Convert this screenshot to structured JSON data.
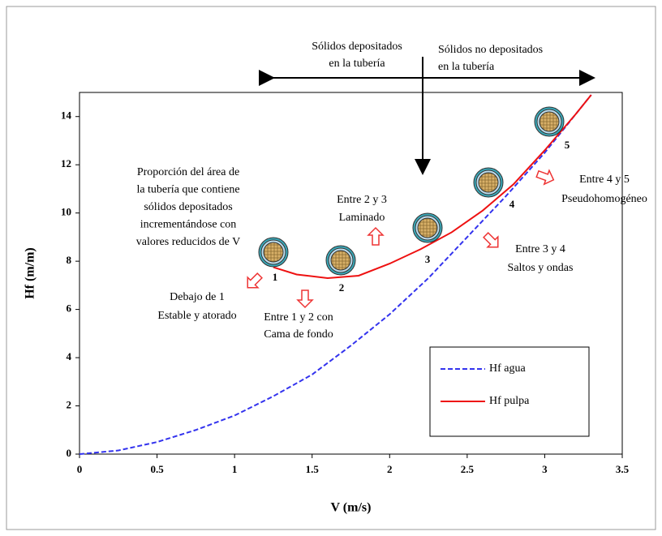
{
  "chart_data": {
    "type": "line",
    "xlabel": "V (m/s)",
    "ylabel": "Hf (m/m)",
    "xlim": [
      0,
      3.5
    ],
    "ylim": [
      0,
      15
    ],
    "xticks": [
      0,
      0.5,
      1,
      1.5,
      2,
      2.5,
      3,
      3.5
    ],
    "yticks": [
      0,
      2,
      4,
      6,
      8,
      10,
      12,
      14
    ],
    "series": [
      {
        "name": "Hf  agua",
        "color": "#3333ee",
        "dashed": true,
        "x": [
          0,
          0.25,
          0.5,
          0.75,
          1,
          1.25,
          1.5,
          1.75,
          2,
          2.25,
          2.5,
          2.75,
          3,
          3.3
        ],
        "values": [
          0,
          0.15,
          0.5,
          1.0,
          1.6,
          2.4,
          3.3,
          4.5,
          5.8,
          7.3,
          9.0,
          10.7,
          12.5,
          14.9
        ]
      },
      {
        "name": "Hf  pulpa",
        "color": "#ee1111",
        "dashed": false,
        "x": [
          1.25,
          1.4,
          1.6,
          1.8,
          2.0,
          2.2,
          2.4,
          2.6,
          2.8,
          3.0,
          3.2,
          3.3
        ],
        "values": [
          7.75,
          7.45,
          7.3,
          7.4,
          7.9,
          8.5,
          9.2,
          10.1,
          11.2,
          12.6,
          14.1,
          14.9
        ]
      }
    ],
    "point_labels": [
      "1",
      "2",
      "3",
      "4",
      "5"
    ],
    "annotations": [
      [
        "Sólidos depositados",
        "en la tubería"
      ],
      [
        "Sólidos no depositados",
        "en la tubería"
      ],
      [
        "Proporción del área de",
        "la tubería que contiene",
        "sólidos depositados",
        "incrementándose con",
        "valores reducidos de V"
      ],
      [
        "Entre 2 y 3",
        "Laminado"
      ],
      [
        "Entre 4 y 5",
        "Pseudohomogéneo"
      ],
      [
        "Entre 3 y 4",
        "Saltos y ondas"
      ],
      [
        "Debajo de 1",
        "Estable y atorado"
      ],
      [
        "Entre 1 y 2 con",
        "Cama de fondo"
      ]
    ]
  }
}
